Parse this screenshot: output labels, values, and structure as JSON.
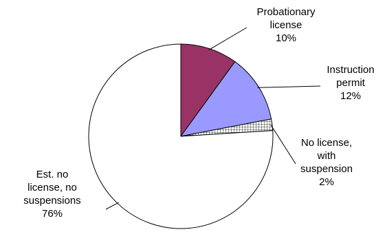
{
  "chart_data": {
    "type": "pie",
    "title": "",
    "slices": [
      {
        "label_lines": [
          "Probationary",
          "license",
          "10%"
        ],
        "value": 10,
        "color": "#993366",
        "pattern": "solid"
      },
      {
        "label_lines": [
          "Instruction",
          "permit",
          "12%"
        ],
        "value": 12,
        "color": "#9999ff",
        "pattern": "solid"
      },
      {
        "label_lines": [
          "No license,",
          "with",
          "suspension",
          "2%"
        ],
        "value": 2,
        "color": "#ffffff",
        "pattern": "grid"
      },
      {
        "label_lines": [
          "Est. no",
          "license, no",
          "suspensions",
          "76%"
        ],
        "value": 76,
        "color": "#ffffff",
        "pattern": "solid"
      }
    ],
    "start_angle_deg": 0,
    "direction": "clockwise",
    "legend": "none",
    "data_labels": "outside-with-leader-lines"
  }
}
